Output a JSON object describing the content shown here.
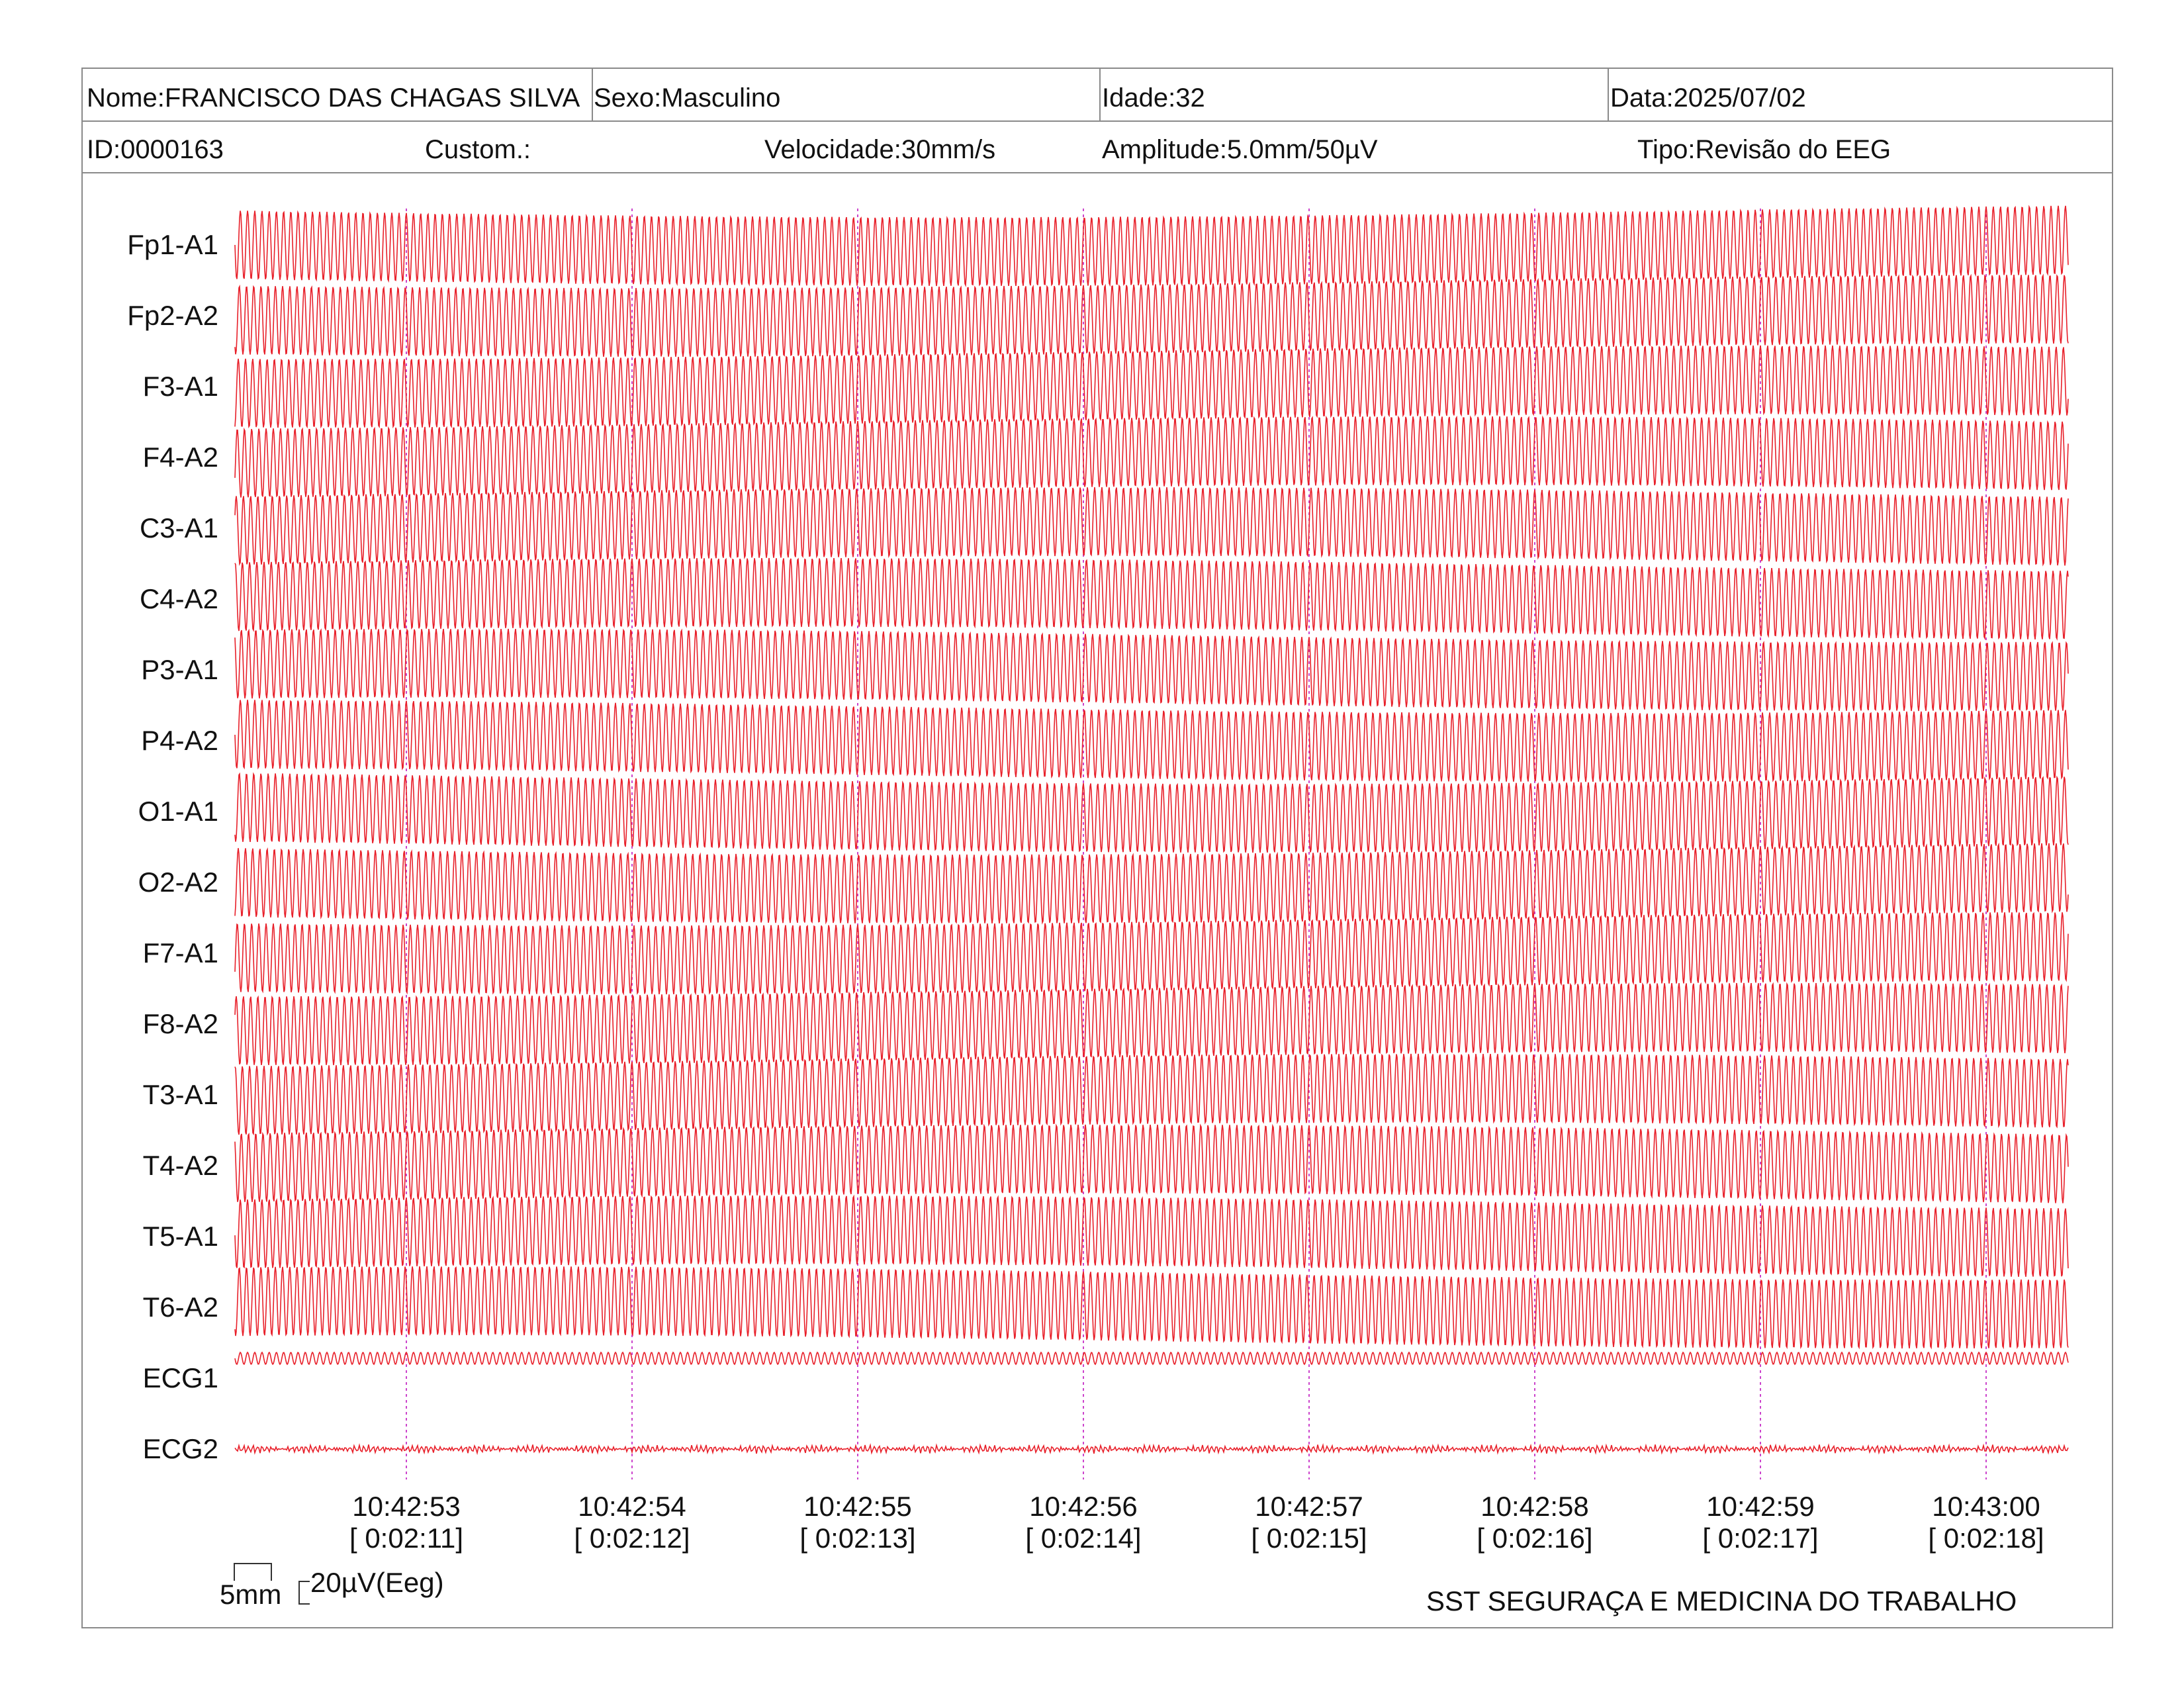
{
  "header": {
    "name_label": "Nome:",
    "name_value": "FRANCISCO DAS CHAGAS SILVA",
    "sex": "Sexo:Masculino",
    "age": "Idade:32",
    "date": "Data:2025/07/02",
    "id": "ID:0000163",
    "custom": "Custom.:",
    "speed": "Velocidade:30mm/s",
    "amplitude": "Amplitude:5.0mm/50µV",
    "type": "Tipo:Revisão do EEG"
  },
  "channels": [
    "Fp1-A1",
    "Fp2-A2",
    "F3-A1",
    "F4-A2",
    "C3-A1",
    "C4-A2",
    "P3-A1",
    "P4-A2",
    "O1-A1",
    "O2-A2",
    "F7-A1",
    "F8-A2",
    "T3-A1",
    "T4-A2",
    "T5-A1",
    "T6-A2",
    "ECG1",
    "ECG2"
  ],
  "time_marks": [
    {
      "clock": "10:42:53",
      "elapsed": "[ 0:02:11]"
    },
    {
      "clock": "10:42:54",
      "elapsed": "[ 0:02:12]"
    },
    {
      "clock": "10:42:55",
      "elapsed": "[ 0:02:13]"
    },
    {
      "clock": "10:42:56",
      "elapsed": "[ 0:02:14]"
    },
    {
      "clock": "10:42:57",
      "elapsed": "[ 0:02:15]"
    },
    {
      "clock": "10:42:58",
      "elapsed": "[ 0:02:16]"
    },
    {
      "clock": "10:42:59",
      "elapsed": "[ 0:02:17]"
    },
    {
      "clock": "10:43:00",
      "elapsed": "[ 0:02:18]"
    }
  ],
  "scale": {
    "time": "5mm",
    "amplitude": "20µV(Eeg)"
  },
  "footer": {
    "company": "SST SEGURAÇA E MEDICINA DO TRABALHO"
  },
  "colors": {
    "trace": "#e8202a",
    "marker": "#cc44cc",
    "border": "#8a8a8a"
  }
}
